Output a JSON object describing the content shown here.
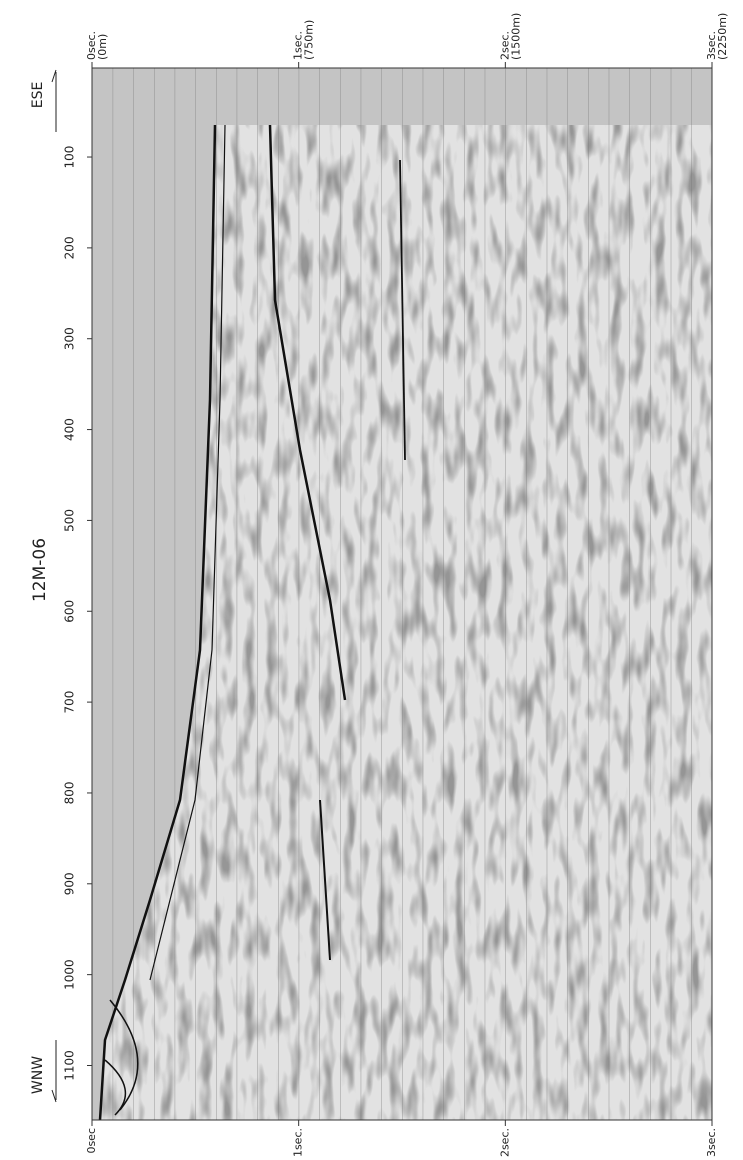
{
  "chart_data": {
    "type": "seismic-section",
    "title": "12M-06",
    "direction_top": "ESE",
    "direction_bottom": "WNW",
    "ylim": [
      2,
      1160
    ],
    "yticks": [
      100,
      200,
      300,
      400,
      500,
      600,
      700,
      800,
      900,
      1000,
      1100
    ],
    "xlim": [
      0,
      3
    ],
    "xticks": [
      {
        "value": 0,
        "label": "0sec"
      },
      {
        "value": 1,
        "label": "1sec."
      },
      {
        "value": 2,
        "label": "2sec."
      },
      {
        "value": 3,
        "label": "3sec."
      }
    ],
    "x2ticks": [
      {
        "value": 0,
        "label": "0sec."
      },
      {
        "value": 1,
        "label": "1sec."
      },
      {
        "value": 2,
        "label": "2sec."
      },
      {
        "value": 3,
        "label": "3sec."
      }
    ],
    "x2tick_depths": [
      "(0m)",
      "(750m)",
      "(1500m)",
      "(2250m)"
    ]
  }
}
